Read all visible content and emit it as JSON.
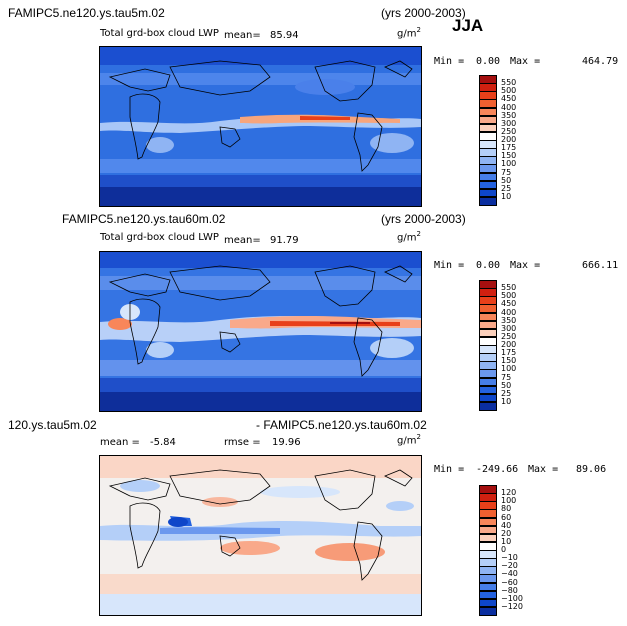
{
  "season": "JJA",
  "panels": [
    {
      "case": "FAMIPC5.ne120.ys.tau5m.02",
      "years": "(yrs 2000-2003)",
      "variable": "Total grd-box cloud LWP",
      "mean_label": "mean=",
      "mean_value": "85.94",
      "units": "g/m",
      "units_exp": "2",
      "min_label": "Min =",
      "min_value": "0.00",
      "max_label": "Max =",
      "max_value": "464.79",
      "levels": [
        "550",
        "500",
        "450",
        "400",
        "350",
        "300",
        "250",
        "200",
        "175",
        "150",
        "100",
        "75",
        "50",
        "25",
        "10"
      ],
      "colors": [
        "#a50f0f",
        "#d02010",
        "#e8401a",
        "#f06030",
        "#f8865a",
        "#f9a98a",
        "#fbd0bc",
        "#ffffff",
        "#d7e6fb",
        "#b4cff8",
        "#8fb4f3",
        "#6b98ee",
        "#467ee8",
        "#2462df",
        "#0e46c9",
        "#0a2ea0"
      ]
    },
    {
      "case": "FAMIPC5.ne120.ys.tau60m.02",
      "years": "(yrs 2000-2003)",
      "variable": "Total grd-box cloud LWP",
      "mean_label": "mean=",
      "mean_value": "91.79",
      "units": "g/m",
      "units_exp": "2",
      "min_label": "Min =",
      "min_value": "0.00",
      "max_label": "Max =",
      "max_value": "666.11",
      "levels": [
        "550",
        "500",
        "450",
        "400",
        "350",
        "300",
        "250",
        "200",
        "175",
        "150",
        "100",
        "75",
        "50",
        "25",
        "10"
      ],
      "colors": [
        "#a50f0f",
        "#d02010",
        "#e8401a",
        "#f06030",
        "#f8865a",
        "#f9a98a",
        "#fbd0bc",
        "#ffffff",
        "#d7e6fb",
        "#b4cff8",
        "#8fb4f3",
        "#6b98ee",
        "#467ee8",
        "#2462df",
        "#0e46c9",
        "#0a2ea0"
      ]
    },
    {
      "case_left": "120.ys.tau5m.02",
      "case_right": "- FAMIPC5.ne120.ys.tau60m.02",
      "mean_label": "mean =",
      "mean_value": "-5.84",
      "rmse_label": "rmse =",
      "rmse_value": "19.96",
      "units": "g/m",
      "units_exp": "2",
      "min_label": "Min =",
      "min_value": "-249.66",
      "max_label": "Max =",
      "max_value": "89.06",
      "levels": [
        "120",
        "100",
        "80",
        "60",
        "40",
        "20",
        "10",
        "0",
        "−10",
        "−20",
        "−40",
        "−60",
        "−80",
        "−100",
        "−120"
      ],
      "colors": [
        "#a50f0f",
        "#d02010",
        "#e8401a",
        "#f06030",
        "#f8865a",
        "#f9a98a",
        "#fbd0bc",
        "#ffffff",
        "#d7e6fb",
        "#b4cff8",
        "#8fb4f3",
        "#6b98ee",
        "#467ee8",
        "#2462df",
        "#0e46c9",
        "#0a2ea0"
      ]
    }
  ]
}
